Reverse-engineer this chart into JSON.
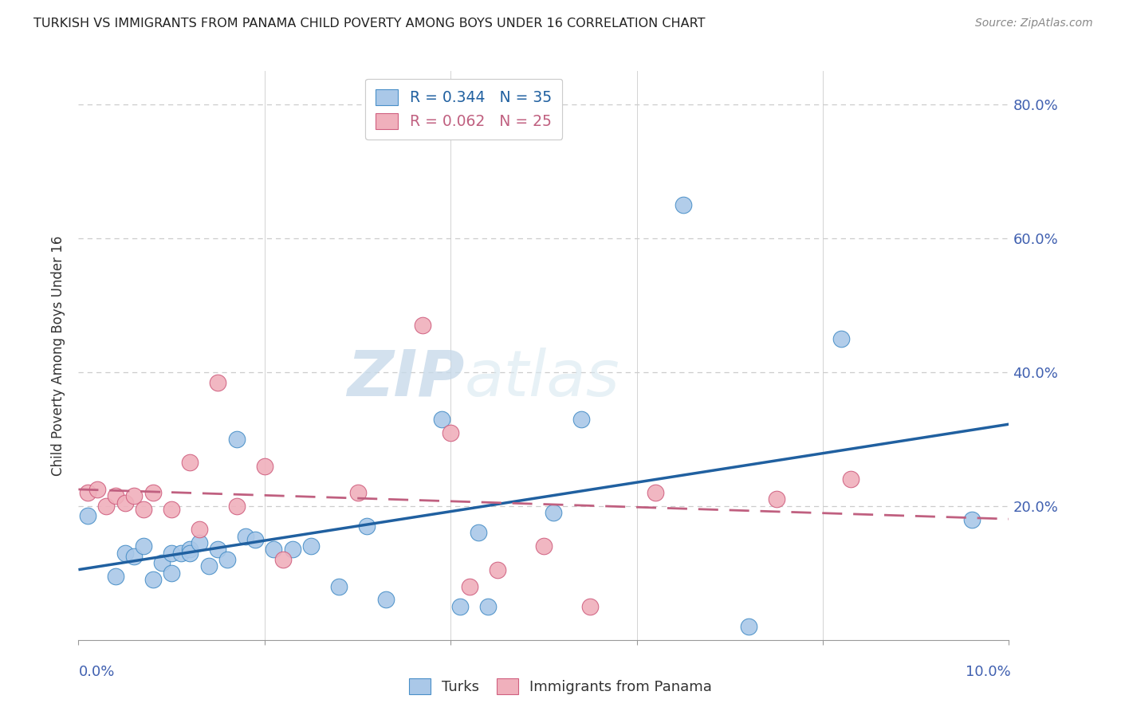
{
  "title": "TURKISH VS IMMIGRANTS FROM PANAMA CHILD POVERTY AMONG BOYS UNDER 16 CORRELATION CHART",
  "source": "Source: ZipAtlas.com",
  "ylabel": "Child Poverty Among Boys Under 16",
  "legend_label1": "Turks",
  "legend_label2": "Immigrants from Panama",
  "r1": 0.344,
  "n1": 35,
  "r2": 0.062,
  "n2": 25,
  "xmin": 0.0,
  "xmax": 0.1,
  "ymin": 0.0,
  "ymax": 0.85,
  "yticks": [
    0.0,
    0.2,
    0.4,
    0.6,
    0.8
  ],
  "ytick_labels": [
    "",
    "20.0%",
    "40.0%",
    "60.0%",
    "80.0%"
  ],
  "color_turks": "#aac8e8",
  "color_panama": "#f0b0bc",
  "color_turks_edge": "#4a90c8",
  "color_panama_edge": "#d06080",
  "color_turks_line": "#2060a0",
  "color_panama_line": "#c06080",
  "color_axis_labels": "#4060b0",
  "watermark_zip": "ZIP",
  "watermark_atlas": "atlas",
  "turks_x": [
    0.001,
    0.004,
    0.005,
    0.006,
    0.007,
    0.008,
    0.009,
    0.01,
    0.01,
    0.011,
    0.012,
    0.012,
    0.013,
    0.014,
    0.015,
    0.016,
    0.017,
    0.018,
    0.019,
    0.021,
    0.023,
    0.025,
    0.028,
    0.031,
    0.033,
    0.039,
    0.041,
    0.043,
    0.044,
    0.051,
    0.054,
    0.065,
    0.072,
    0.082,
    0.096
  ],
  "turks_y": [
    0.185,
    0.095,
    0.13,
    0.125,
    0.14,
    0.09,
    0.115,
    0.13,
    0.1,
    0.13,
    0.135,
    0.13,
    0.145,
    0.11,
    0.135,
    0.12,
    0.3,
    0.155,
    0.15,
    0.135,
    0.135,
    0.14,
    0.08,
    0.17,
    0.06,
    0.33,
    0.05,
    0.16,
    0.05,
    0.19,
    0.33,
    0.65,
    0.02,
    0.45,
    0.18
  ],
  "panama_x": [
    0.001,
    0.002,
    0.003,
    0.004,
    0.005,
    0.006,
    0.007,
    0.008,
    0.01,
    0.012,
    0.013,
    0.015,
    0.017,
    0.02,
    0.022,
    0.03,
    0.037,
    0.04,
    0.042,
    0.045,
    0.05,
    0.055,
    0.062,
    0.075,
    0.083
  ],
  "panama_y": [
    0.22,
    0.225,
    0.2,
    0.215,
    0.205,
    0.215,
    0.195,
    0.22,
    0.195,
    0.265,
    0.165,
    0.385,
    0.2,
    0.26,
    0.12,
    0.22,
    0.47,
    0.31,
    0.08,
    0.105,
    0.14,
    0.05,
    0.22,
    0.21,
    0.24
  ]
}
